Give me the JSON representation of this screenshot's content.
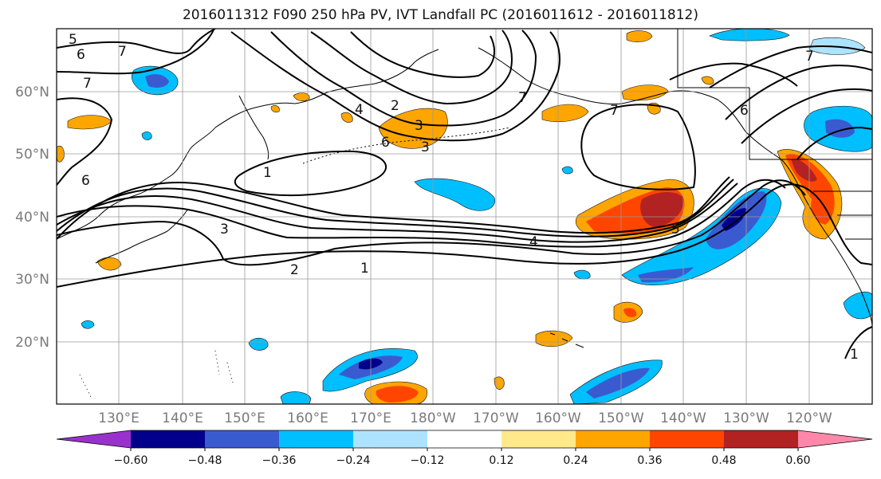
{
  "title": "2016011312 F090 250 hPa PV, IVT Landfall PC (2016011612 - 2016011812)",
  "map": {
    "lat_labels": [
      "60°N",
      "50°N",
      "40°N",
      "30°N",
      "20°N"
    ],
    "lon_labels": [
      "130°E",
      "140°E",
      "150°E",
      "160°E",
      "170°E",
      "180°W",
      "170°W",
      "160°W",
      "150°W",
      "140°W",
      "130°W",
      "120°W"
    ],
    "contour_labels": [
      "5",
      "6",
      "7",
      "7",
      "6",
      "4",
      "2",
      "3",
      "6",
      "3",
      "7",
      "7",
      "1",
      "6",
      "7",
      "3",
      "4",
      "5",
      "2",
      "1",
      "1"
    ],
    "grid": true
  },
  "colorbar": {
    "ticks": [
      "−0.60",
      "−0.48",
      "−0.36",
      "−0.24",
      "−0.12",
      "0.12",
      "0.24",
      "0.36",
      "0.48",
      "0.60"
    ],
    "colors": [
      "#9932CC",
      "#00008B",
      "#3A5BD0",
      "#00BFFF",
      "#ADE3FF",
      "#FFFFFF",
      "#FFE98A",
      "#FFA500",
      "#FF4500",
      "#B22222",
      "#FF88AA"
    ]
  }
}
